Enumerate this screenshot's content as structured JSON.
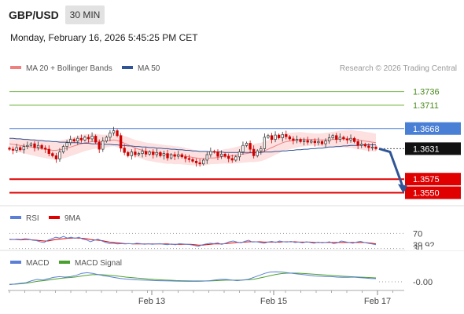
{
  "header": {
    "pair": "GBP/USD",
    "timeframe": "30 MIN",
    "datetime": "Monday, February 16, 2026 5:45:25 PM CET"
  },
  "copyright": "Research © 2026 Trading Central",
  "colors": {
    "bollinger_fill": "#fde0e0",
    "ma20": "#f08080",
    "ma50": "#2f5597",
    "up_candle": "#333333",
    "down_candle": "#d00000",
    "support": "#e00000",
    "resistance_minor": "#7ab648",
    "pivot": "#4a7fd6",
    "rsi": "#5b7fd6",
    "rsi_ma": "#e00000",
    "macd": "#5b7fd6",
    "macd_signal": "#4aa02c"
  },
  "chart_data": [
    {
      "type": "candlestick",
      "legend": [
        "MA 20 + Bollinger Bands",
        "MA 50"
      ],
      "x_ticks": [
        "Feb 13",
        "Feb 15",
        "Feb 17"
      ],
      "ylim": [
        1.3532,
        1.376
      ],
      "levels": [
        {
          "value": 1.3736,
          "label": "1.3736",
          "kind": "resistance"
        },
        {
          "value": 1.3711,
          "label": "1.3711",
          "kind": "resistance"
        },
        {
          "value": 1.3668,
          "label": "1.3668",
          "kind": "pivot"
        },
        {
          "value": 1.3631,
          "label": "1.3631",
          "kind": "last"
        },
        {
          "value": 1.3575,
          "label": "1.3575",
          "kind": "support"
        },
        {
          "value": 1.355,
          "label": "1.3550",
          "kind": "support"
        }
      ],
      "close": [
        1.363,
        1.3628,
        1.3633,
        1.3629,
        1.3635,
        1.3637,
        1.364,
        1.3633,
        1.3637,
        1.3632,
        1.363,
        1.3622,
        1.3618,
        1.3612,
        1.3625,
        1.3635,
        1.3642,
        1.3648,
        1.3645,
        1.365,
        1.3647,
        1.3652,
        1.3649,
        1.3654,
        1.3643,
        1.363,
        1.3645,
        1.3652,
        1.366,
        1.3664,
        1.3655,
        1.3632,
        1.3624,
        1.3618,
        1.3625,
        1.362,
        1.3622,
        1.3626,
        1.3621,
        1.3625,
        1.362,
        1.3624,
        1.3618,
        1.3622,
        1.3614,
        1.362,
        1.3617,
        1.362,
        1.3616,
        1.3613,
        1.3611,
        1.3608,
        1.3605,
        1.3603,
        1.361,
        1.362,
        1.3626,
        1.3625,
        1.3617,
        1.3621,
        1.3617,
        1.3613,
        1.361,
        1.3616,
        1.3625,
        1.3637,
        1.3641,
        1.363,
        1.3618,
        1.3627,
        1.3631,
        1.3652,
        1.3655,
        1.3648,
        1.3656,
        1.3651,
        1.3657,
        1.3653,
        1.3649,
        1.3646,
        1.3648,
        1.3644,
        1.3646,
        1.3643,
        1.3645,
        1.3642,
        1.3644,
        1.364,
        1.3645,
        1.3651,
        1.3655,
        1.3648,
        1.3652,
        1.3649,
        1.3647,
        1.365,
        1.3644,
        1.3637,
        1.3639,
        1.3636,
        1.3633,
        1.3634,
        1.3631
      ],
      "ma20": [
        1.364,
        1.3639,
        1.3638,
        1.3637,
        1.3636,
        1.3635,
        1.3634,
        1.3633,
        1.3632,
        1.3631,
        1.363,
        1.3629,
        1.3628,
        1.3628,
        1.3629,
        1.363,
        1.3632,
        1.3634,
        1.3636,
        1.3638,
        1.364,
        1.3642,
        1.3643,
        1.3644,
        1.3645,
        1.3644,
        1.3644,
        1.3645,
        1.3646,
        1.3647,
        1.3646,
        1.3644,
        1.3641,
        1.3638,
        1.3635,
        1.3632,
        1.363,
        1.3628,
        1.3626,
        1.3625,
        1.3624,
        1.3623,
        1.3622,
        1.3621,
        1.362,
        1.362,
        1.3619,
        1.3619,
        1.3618,
        1.3617,
        1.3616,
        1.3615,
        1.3614,
        1.3613,
        1.3613,
        1.3613,
        1.3614,
        1.3614,
        1.3615,
        1.3616,
        1.3617,
        1.3617,
        1.3618,
        1.3619,
        1.362,
        1.3621,
        1.3622,
        1.3623,
        1.3623,
        1.3624,
        1.3625,
        1.3627,
        1.363,
        1.3633,
        1.3636,
        1.3639,
        1.3642,
        1.3644,
        1.3645,
        1.3646,
        1.3647,
        1.3648,
        1.3648,
        1.3648,
        1.3648,
        1.3648,
        1.3647,
        1.3647,
        1.3647,
        1.3647,
        1.3648,
        1.3648,
        1.3649,
        1.3649,
        1.3649,
        1.3649,
        1.3648,
        1.3647,
        1.3646,
        1.3645,
        1.3644,
        1.3643,
        1.3642
      ],
      "ma50": [
        1.365,
        1.365,
        1.3649,
        1.3649,
        1.3648,
        1.3648,
        1.3647,
        1.3647,
        1.3646,
        1.3646,
        1.3645,
        1.3645,
        1.3644,
        1.3644,
        1.3643,
        1.3643,
        1.3643,
        1.3642,
        1.3642,
        1.3642,
        1.3641,
        1.3641,
        1.3641,
        1.364,
        1.364,
        1.364,
        1.3639,
        1.3639,
        1.3639,
        1.3638,
        1.3638,
        1.3637,
        1.3637,
        1.3636,
        1.3636,
        1.3635,
        1.3635,
        1.3634,
        1.3634,
        1.3633,
        1.3633,
        1.3632,
        1.3632,
        1.3631,
        1.3631,
        1.363,
        1.363,
        1.3629,
        1.3629,
        1.3628,
        1.3628,
        1.3627,
        1.3627,
        1.3626,
        1.3626,
        1.3626,
        1.3625,
        1.3625,
        1.3625,
        1.3625,
        1.3624,
        1.3624,
        1.3624,
        1.3624,
        1.3624,
        1.3624,
        1.3624,
        1.3624,
        1.3624,
        1.3624,
        1.3624,
        1.3625,
        1.3625,
        1.3625,
        1.3626,
        1.3626,
        1.3627,
        1.3627,
        1.3628,
        1.3628,
        1.3629,
        1.3629,
        1.363,
        1.363,
        1.3631,
        1.3631,
        1.3632,
        1.3632,
        1.3633,
        1.3634,
        1.3634,
        1.3635,
        1.3635,
        1.3636,
        1.3636,
        1.3637,
        1.3637,
        1.3637,
        1.3638,
        1.3638,
        1.3638,
        1.3638,
        1.3638
      ],
      "forecast": [
        1.3631,
        1.3625,
        1.3575,
        1.355
      ]
    },
    {
      "type": "line",
      "name": "RSI",
      "legend": [
        "RSI",
        "9MA"
      ],
      "levels": [
        70,
        30
      ],
      "level_labels": [
        "70",
        "39.92",
        "30"
      ],
      "ylim": [
        0,
        100
      ],
      "rsi": [
        55,
        54,
        55,
        54,
        56,
        55,
        52,
        51,
        48,
        46,
        52,
        56,
        60,
        58,
        62,
        58,
        60,
        57,
        60,
        55,
        53,
        48,
        52,
        55,
        50,
        46,
        43,
        44,
        42,
        43,
        42,
        43,
        42,
        44,
        43,
        41,
        43,
        41,
        42,
        43,
        41,
        40,
        42,
        40,
        43,
        42,
        41,
        40,
        38,
        36,
        40,
        42,
        44,
        43,
        45,
        41,
        44,
        48,
        50,
        47,
        45,
        49,
        52,
        47,
        48,
        46,
        44,
        47,
        49,
        46,
        50,
        48,
        47,
        49,
        46,
        47,
        45,
        48,
        46,
        44,
        47,
        45,
        46,
        48,
        43,
        45,
        50,
        48,
        46,
        44,
        47,
        49,
        46,
        44,
        42,
        40
      ],
      "rsi_ma": [
        54,
        54,
        54,
        53,
        54,
        54,
        53,
        52,
        51,
        50,
        50,
        52,
        54,
        55,
        56,
        57,
        58,
        58,
        58,
        57,
        56,
        54,
        53,
        52,
        51,
        49,
        47,
        46,
        45,
        44,
        43,
        43,
        42,
        42,
        42,
        42,
        42,
        42,
        42,
        42,
        42,
        42,
        41,
        41,
        41,
        41,
        41,
        41,
        40,
        39,
        39,
        40,
        41,
        42,
        42,
        42,
        43,
        44,
        45,
        46,
        46,
        47,
        48,
        48,
        48,
        48,
        47,
        47,
        47,
        47,
        47,
        48,
        48,
        48,
        48,
        47,
        47,
        47,
        47,
        46,
        46,
        46,
        46,
        46,
        46,
        46,
        46,
        46,
        46,
        46,
        46,
        46,
        46,
        45,
        44,
        42
      ]
    },
    {
      "type": "line",
      "name": "MACD",
      "legend": [
        "MACD",
        "MACD Signal"
      ],
      "last_label": "-0.00",
      "ylim": [
        -1,
        1
      ],
      "macd": [
        -0.45,
        -0.4,
        -0.35,
        -0.3,
        -0.15,
        -0.05,
        -0.1,
        0.0,
        0.1,
        0.15,
        0.12,
        0.15,
        0.25,
        0.4,
        0.45,
        0.4,
        0.3,
        0.22,
        0.15,
        0.08,
        0.02,
        -0.03,
        -0.06,
        -0.09,
        -0.1,
        -0.12,
        -0.14,
        -0.15,
        -0.16,
        -0.17,
        -0.18,
        -0.19,
        -0.2,
        -0.19,
        -0.2,
        -0.18,
        -0.15,
        -0.1,
        -0.05,
        -0.05,
        -0.1,
        -0.15,
        -0.1,
        -0.05,
        0.1,
        0.25,
        0.4,
        0.5,
        0.52,
        0.5,
        0.45,
        0.4,
        0.35,
        0.3,
        0.25,
        0.2,
        0.18,
        0.15,
        0.15,
        0.12,
        0.1,
        0.1,
        0.12,
        0.08,
        0.05,
        0.02,
        0.0
      ],
      "signal": [
        -0.42,
        -0.41,
        -0.38,
        -0.34,
        -0.27,
        -0.2,
        -0.15,
        -0.1,
        -0.04,
        0.02,
        0.06,
        0.09,
        0.13,
        0.2,
        0.26,
        0.3,
        0.31,
        0.29,
        0.26,
        0.22,
        0.17,
        0.12,
        0.08,
        0.04,
        0.01,
        -0.03,
        -0.06,
        -0.08,
        -0.1,
        -0.12,
        -0.14,
        -0.15,
        -0.16,
        -0.17,
        -0.17,
        -0.17,
        -0.17,
        -0.15,
        -0.13,
        -0.11,
        -0.11,
        -0.11,
        -0.1,
        -0.08,
        -0.04,
        0.04,
        0.13,
        0.23,
        0.32,
        0.38,
        0.41,
        0.42,
        0.41,
        0.39,
        0.36,
        0.33,
        0.3,
        0.27,
        0.24,
        0.21,
        0.18,
        0.16,
        0.14,
        0.12,
        0.1,
        0.08,
        0.06
      ]
    }
  ]
}
